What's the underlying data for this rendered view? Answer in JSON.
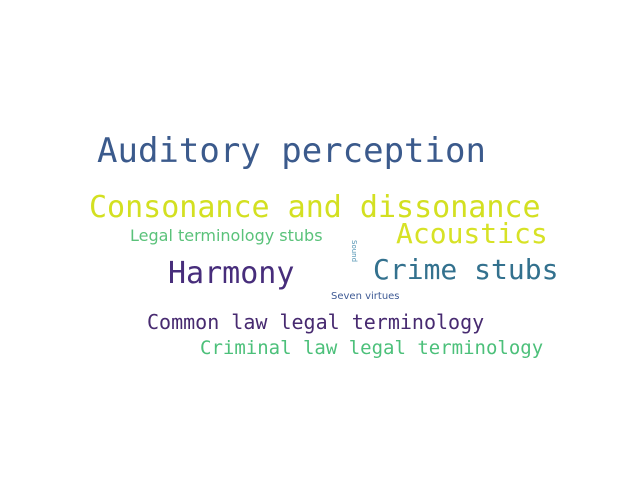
{
  "words": [
    {
      "text": "Auditory perception",
      "color": "#3b5a8c"
    },
    {
      "text": "Consonance and dissonance",
      "color": "#d3e021"
    },
    {
      "text": "Legal terminology stubs",
      "color": "#5ac27a"
    },
    {
      "text": "Acoustics",
      "color": "#d7e226"
    },
    {
      "text": "Sound",
      "color": "#4a8fb0"
    },
    {
      "text": "Harmony",
      "color": "#472d7b"
    },
    {
      "text": "Crime stubs",
      "color": "#33718e"
    },
    {
      "text": "Seven virtues",
      "color": "#3e5a94"
    },
    {
      "text": "Common law legal terminology",
      "color": "#472a70"
    },
    {
      "text": "Criminal law legal terminology",
      "color": "#4cc07a"
    }
  ]
}
